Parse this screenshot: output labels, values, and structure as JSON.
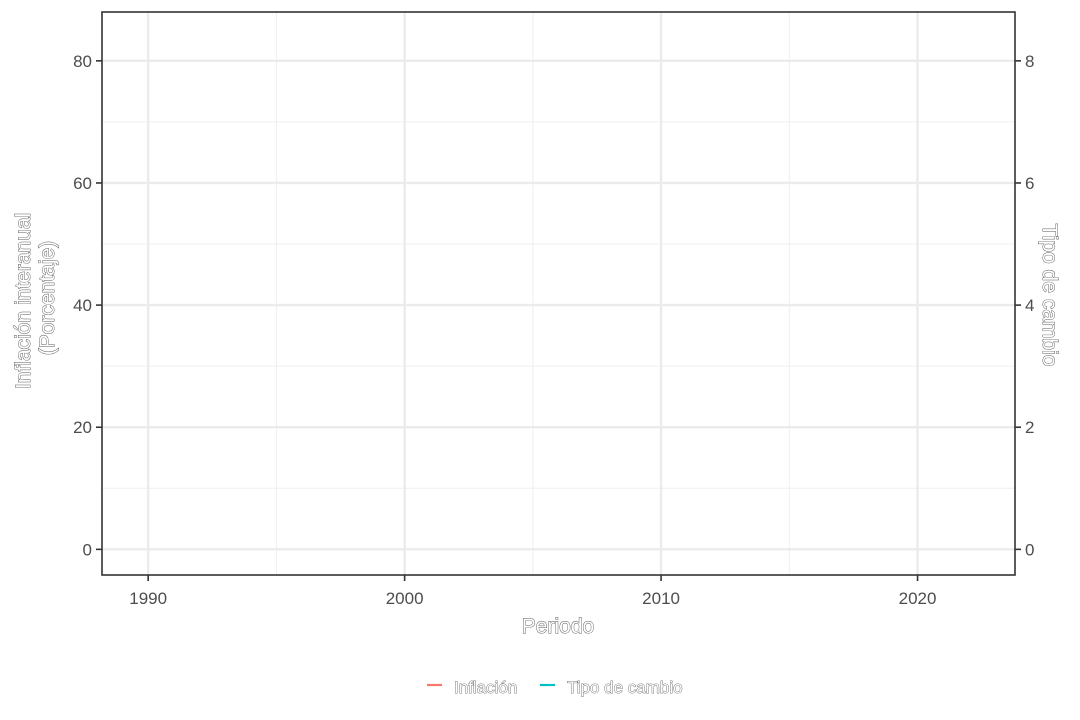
{
  "chart_data": {
    "type": "line",
    "title": "",
    "xlabel": "Periodo",
    "ylabel_lines": [
      "Inflación interanual",
      "(Porcentaje)"
    ],
    "y2label": "Tipo de cambio",
    "xlim": [
      1988.2,
      2023.8
    ],
    "ylim": [
      -4.2,
      88
    ],
    "y2lim": [
      -0.42,
      8.8
    ],
    "x_ticks": [
      1990,
      2000,
      2010,
      2020
    ],
    "y_ticks": [
      0,
      20,
      40,
      60,
      80
    ],
    "y2_ticks": [
      0,
      2,
      4,
      6,
      8
    ],
    "grid": true,
    "legend_position": "bottom",
    "series": [
      {
        "name": "Inflación",
        "axis": "left",
        "color": "#f8766d",
        "x": [],
        "y": []
      },
      {
        "name": "Tipo de cambio",
        "axis": "right",
        "color": "#00bfc4",
        "x": [],
        "y": []
      }
    ]
  }
}
